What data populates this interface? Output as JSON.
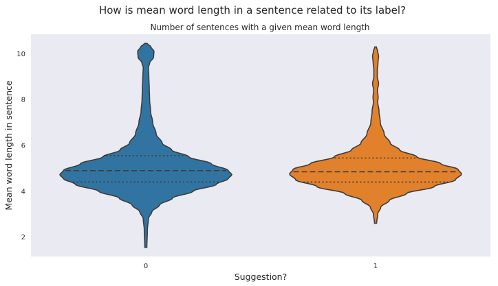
{
  "chart_data": {
    "type": "violin",
    "title": "How is mean word length in a sentence related to its label?",
    "subtitle": "Number of sentences with a given mean word length",
    "xlabel": "Suggestion?",
    "ylabel": "Mean word length in sentence",
    "categories": [
      "0",
      "1"
    ],
    "yticks": [
      2,
      4,
      6,
      8,
      10
    ],
    "ylim": [
      1.15,
      10.85
    ],
    "grid": false,
    "inner": "quartile",
    "colors": {
      "0": "#3274a1",
      "1": "#e1812c",
      "background": "#eaeaf2",
      "outline": "#3d3d3d"
    },
    "violins": [
      {
        "category": "0",
        "min": 1.55,
        "max": 10.45,
        "quartiles": {
          "q1": 4.4,
          "median": 4.9,
          "q3": 5.55
        },
        "density": [
          [
            1.55,
            0.012
          ],
          [
            2.3,
            0.018
          ],
          [
            2.8,
            0.03
          ],
          [
            3.1,
            0.07
          ],
          [
            3.4,
            0.16
          ],
          [
            3.7,
            0.31
          ],
          [
            4.0,
            0.55
          ],
          [
            4.3,
            0.82
          ],
          [
            4.55,
            0.96
          ],
          [
            4.72,
            1.0
          ],
          [
            4.9,
            0.96
          ],
          [
            5.2,
            0.76
          ],
          [
            5.5,
            0.5
          ],
          [
            5.8,
            0.3
          ],
          [
            6.1,
            0.19
          ],
          [
            6.5,
            0.12
          ],
          [
            7.0,
            0.08
          ],
          [
            7.5,
            0.055
          ],
          [
            8.0,
            0.044
          ],
          [
            8.5,
            0.04
          ],
          [
            9.0,
            0.035
          ],
          [
            9.4,
            0.03
          ],
          [
            9.6,
            0.045
          ],
          [
            9.85,
            0.09
          ],
          [
            10.1,
            0.095
          ],
          [
            10.3,
            0.06
          ],
          [
            10.45,
            0.015
          ]
        ]
      },
      {
        "category": "1",
        "min": 2.6,
        "max": 10.3,
        "quartiles": {
          "q1": 4.4,
          "median": 4.85,
          "q3": 5.45
        },
        "density": [
          [
            2.6,
            0.012
          ],
          [
            3.0,
            0.025
          ],
          [
            3.3,
            0.06
          ],
          [
            3.6,
            0.16
          ],
          [
            3.9,
            0.36
          ],
          [
            4.2,
            0.68
          ],
          [
            4.5,
            0.93
          ],
          [
            4.75,
            1.0
          ],
          [
            4.95,
            0.96
          ],
          [
            5.2,
            0.76
          ],
          [
            5.5,
            0.48
          ],
          [
            5.8,
            0.28
          ],
          [
            6.1,
            0.17
          ],
          [
            6.5,
            0.1
          ],
          [
            7.0,
            0.055
          ],
          [
            7.5,
            0.04
          ],
          [
            7.9,
            0.025
          ],
          [
            8.1,
            0.03
          ],
          [
            8.4,
            0.022
          ],
          [
            8.7,
            0.035
          ],
          [
            9.0,
            0.02
          ],
          [
            9.3,
            0.02
          ],
          [
            9.6,
            0.028
          ],
          [
            9.9,
            0.035
          ],
          [
            10.1,
            0.025
          ],
          [
            10.3,
            0.01
          ]
        ]
      }
    ]
  }
}
